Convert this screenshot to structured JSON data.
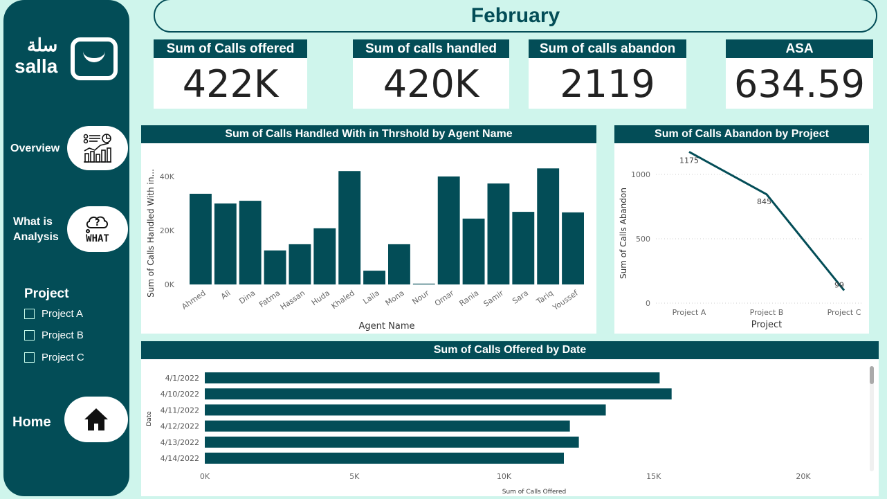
{
  "brand": {
    "arabic": "سلة",
    "latin": "salla"
  },
  "sidebar": {
    "overview_label": "Overview",
    "analysis_label_1": "What is",
    "analysis_label_2": "Analysis",
    "what_icon_text": "WHAT",
    "project_title": "Project",
    "projects": [
      {
        "label": "Project A",
        "checked": false
      },
      {
        "label": "Project B",
        "checked": false
      },
      {
        "label": "Project C",
        "checked": false
      }
    ],
    "home_label": "Home"
  },
  "header": {
    "title": "February"
  },
  "kpis": [
    {
      "label": "Sum of Calls offered",
      "value": "422K"
    },
    {
      "label": "Sum of calls handled",
      "value": "420K"
    },
    {
      "label": "Sum of calls abandon",
      "value": "2119"
    },
    {
      "label": "ASA",
      "value": "634.59"
    }
  ],
  "colors": {
    "primary": "#034d57",
    "background": "#cff5ec"
  },
  "chart_data": [
    {
      "type": "bar",
      "title": "Sum of Calls Handled With in Thrshold by Agent Name",
      "xlabel": "Agent Name",
      "ylabel": "Sum of Calls Handled With in...",
      "categories": [
        "Ahmed",
        "Ali",
        "Dina",
        "Fatma",
        "Hassan",
        "Huda",
        "Khaled",
        "Laila",
        "Mona",
        "Nour",
        "Omar",
        "Rania",
        "Samir",
        "Sara",
        "Tariq",
        "Youssef"
      ],
      "values": [
        33600,
        30000,
        31000,
        12600,
        14900,
        20800,
        42000,
        5100,
        14900,
        300,
        40000,
        24400,
        37400,
        26900,
        43000,
        26700
      ],
      "yticks": [
        "0K",
        "20K",
        "40K"
      ],
      "ylim": [
        0,
        50000
      ]
    },
    {
      "type": "line",
      "title": "Sum of Calls Abandon by Project",
      "xlabel": "Project",
      "ylabel": "Sum of Calls Abandon",
      "categories": [
        "Project A",
        "Project B",
        "Project C"
      ],
      "values": [
        1175,
        845,
        99
      ],
      "data_labels": [
        "1175",
        "845",
        "99"
      ],
      "yticks": [
        "0",
        "500",
        "1000"
      ],
      "ylim": [
        0,
        1250
      ],
      "grid": true
    },
    {
      "type": "bar",
      "orientation": "horizontal",
      "title": "Sum of Calls Offered by Date",
      "xlabel": "Sum of Calls Offered",
      "ylabel": "Date",
      "categories": [
        "4/1/2022",
        "4/10/2022",
        "4/11/2022",
        "4/12/2022",
        "4/13/2022",
        "4/14/2022"
      ],
      "values": [
        15200,
        15600,
        13400,
        12200,
        12500,
        12000
      ],
      "xticks": [
        "0K",
        "5K",
        "10K",
        "15K",
        "20K"
      ],
      "xlim": [
        0,
        22000
      ]
    }
  ]
}
